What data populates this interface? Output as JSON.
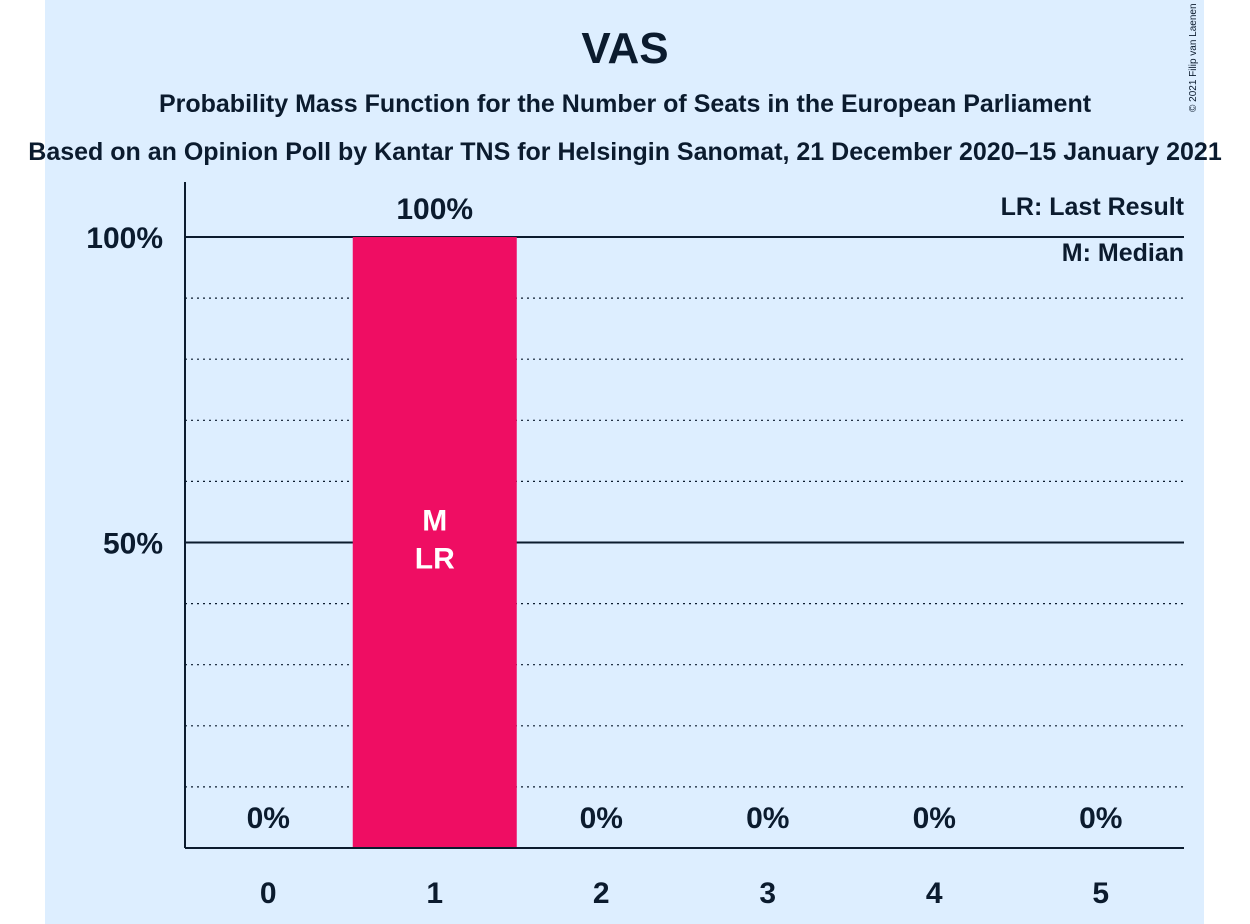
{
  "header": {
    "title": "VAS",
    "subtitle": "Probability Mass Function for the Number of Seats in the European Parliament",
    "subtitle2": "Based on an Opinion Poll by Kantar TNS for Helsingin Sanomat, 21 December 2020–15 January 2021",
    "copyright": "© 2021 Filip van Laenen"
  },
  "legend": {
    "last_result": "LR: Last Result",
    "median": "M: Median"
  },
  "colors": {
    "background": "#ddeeff",
    "bar": "#ef0d63",
    "text": "#0b1b2e"
  },
  "chart_data": {
    "type": "bar",
    "title": "VAS",
    "categories": [
      "0",
      "1",
      "2",
      "3",
      "4",
      "5"
    ],
    "values": [
      0,
      100,
      0,
      0,
      0,
      0
    ],
    "value_labels": [
      "0%",
      "100%",
      "0%",
      "0%",
      "0%",
      "0%"
    ],
    "bar_annotations": {
      "1": "M\nLR"
    },
    "ylim": [
      0,
      100
    ],
    "yticks": [
      50,
      100
    ],
    "ytick_labels": [
      "50%",
      "100%"
    ],
    "grid": true,
    "legend_position": "top-right"
  }
}
